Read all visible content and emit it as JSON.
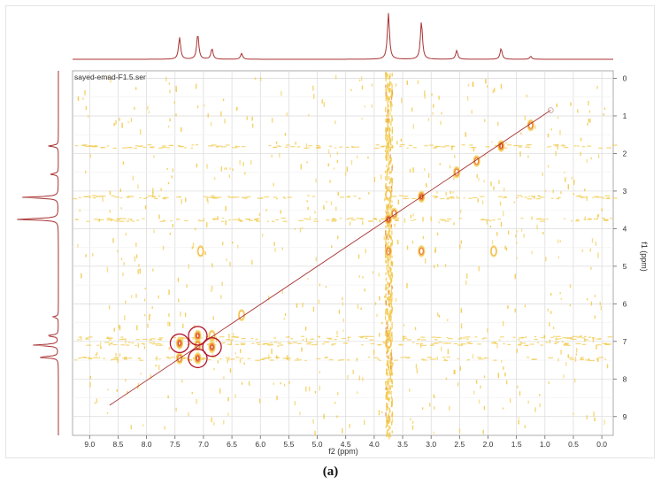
{
  "chart_data": {
    "type": "scatter",
    "subtype": "2D NMR COSY contour plot",
    "dataset_label": "sayed-emad-F1.5.ser",
    "xlabel": "f2 (ppm)",
    "ylabel": "f1 (ppm)",
    "xlim": [
      9.3,
      -0.2
    ],
    "ylim": [
      -0.2,
      9.5
    ],
    "x_ticks": [
      "9.0",
      "8.5",
      "8.0",
      "7.5",
      "7.0",
      "6.5",
      "6.0",
      "5.5",
      "5.0",
      "4.5",
      "4.0",
      "3.5",
      "3.0",
      "2.5",
      "2.0",
      "1.5",
      "1.0",
      "0.5",
      "0.0"
    ],
    "y_ticks": [
      "0",
      "1",
      "2",
      "3",
      "4",
      "5",
      "6",
      "7",
      "8",
      "9"
    ],
    "grid": true,
    "colors": {
      "spectrum": "#a83232",
      "contour_low": "#f2c94c",
      "contour_high": "#d9421f",
      "circle": "#b3142b"
    },
    "diagonal": {
      "from": [
        8.65,
        8.7
      ],
      "to": [
        0.9,
        0.85
      ]
    },
    "f2_projection_peaks": [
      {
        "ppm": 7.42,
        "height": 0.45
      },
      {
        "ppm": 7.1,
        "height": 0.52
      },
      {
        "ppm": 6.85,
        "height": 0.22
      },
      {
        "ppm": 6.33,
        "height": 0.12
      },
      {
        "ppm": 3.75,
        "height": 0.95
      },
      {
        "ppm": 3.17,
        "height": 0.78
      },
      {
        "ppm": 2.55,
        "height": 0.18
      },
      {
        "ppm": 1.77,
        "height": 0.22
      },
      {
        "ppm": 1.25,
        "height": 0.06
      }
    ],
    "f1_projection_peaks": [
      {
        "ppm": 1.8,
        "height": 0.22
      },
      {
        "ppm": 2.55,
        "height": 0.18
      },
      {
        "ppm": 3.17,
        "height": 0.8
      },
      {
        "ppm": 3.75,
        "height": 0.95
      },
      {
        "ppm": 6.35,
        "height": 0.12
      },
      {
        "ppm": 6.85,
        "height": 0.25
      },
      {
        "ppm": 7.1,
        "height": 0.55
      },
      {
        "ppm": 7.42,
        "height": 0.45
      }
    ],
    "diagonal_peaks": [
      {
        "x": 7.42,
        "y": 7.05,
        "intensity": "strong"
      },
      {
        "x": 7.1,
        "y": 6.85,
        "intensity": "strong"
      },
      {
        "x": 6.85,
        "y": 7.15,
        "intensity": "strong"
      },
      {
        "x": 7.1,
        "y": 7.45,
        "intensity": "strong"
      },
      {
        "x": 6.33,
        "y": 6.3,
        "intensity": "weak"
      },
      {
        "x": 3.75,
        "y": 3.75,
        "intensity": "strong"
      },
      {
        "x": 3.65,
        "y": 3.6,
        "intensity": "medium"
      },
      {
        "x": 3.17,
        "y": 3.15,
        "intensity": "strong"
      },
      {
        "x": 2.55,
        "y": 2.5,
        "intensity": "medium"
      },
      {
        "x": 2.2,
        "y": 2.2,
        "intensity": "medium"
      },
      {
        "x": 1.77,
        "y": 1.8,
        "intensity": "strong"
      },
      {
        "x": 1.25,
        "y": 1.25,
        "intensity": "medium"
      }
    ],
    "cross_peaks": [
      {
        "x": 7.42,
        "y": 7.45,
        "intensity": "medium"
      },
      {
        "x": 7.1,
        "y": 7.1,
        "intensity": "medium"
      },
      {
        "x": 6.85,
        "y": 6.85,
        "intensity": "weak"
      },
      {
        "x": 7.05,
        "y": 4.6,
        "intensity": "weak"
      },
      {
        "x": 3.75,
        "y": 4.6,
        "intensity": "medium"
      },
      {
        "x": 3.17,
        "y": 4.6,
        "intensity": "medium"
      },
      {
        "x": 1.9,
        "y": 4.6,
        "intensity": "weak"
      },
      {
        "x": 3.75,
        "y": 7.05,
        "intensity": "weak"
      },
      {
        "x": 3.75,
        "y": 3.1,
        "intensity": "weak"
      }
    ],
    "circled_peaks": [
      {
        "x": 7.42,
        "y": 7.05
      },
      {
        "x": 7.1,
        "y": 6.85
      },
      {
        "x": 6.85,
        "y": 7.15
      },
      {
        "x": 7.1,
        "y": 7.45
      }
    ],
    "noise_streak_columns_ppm": [
      3.75
    ],
    "noise_streak_rows_ppm": [
      1.8,
      3.15,
      3.75,
      6.9,
      7.05,
      7.45
    ]
  },
  "caption": "(a)"
}
